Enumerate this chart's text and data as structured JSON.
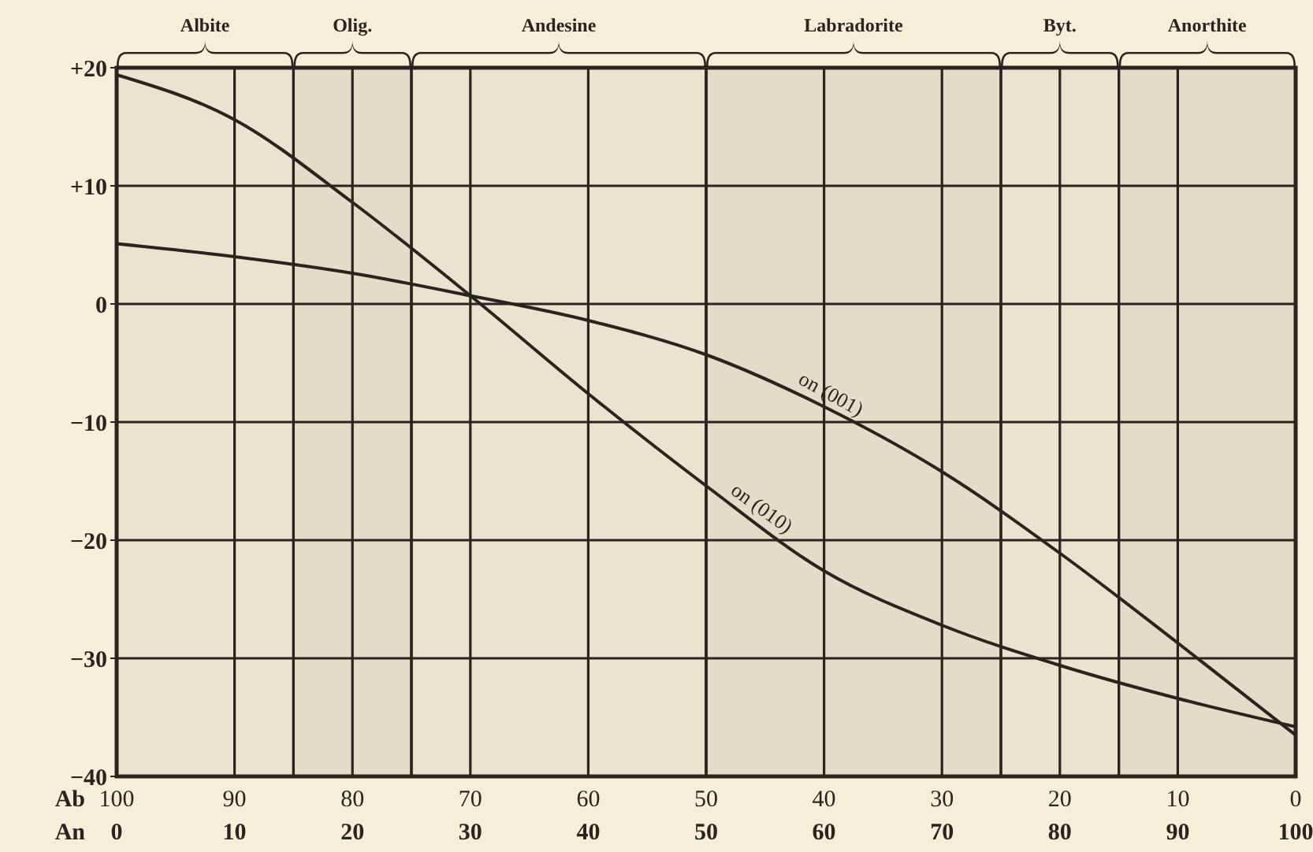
{
  "chart_data": {
    "type": "line",
    "xlabel": "An",
    "x2label": "Ab",
    "xlim": [
      0,
      100
    ],
    "xticks": [
      0,
      10,
      20,
      30,
      40,
      50,
      60,
      70,
      80,
      90,
      100
    ],
    "x2lim": [
      100,
      0
    ],
    "x2ticks": [
      100,
      90,
      80,
      70,
      60,
      50,
      40,
      30,
      20,
      10,
      0
    ],
    "ylim": [
      -40,
      20
    ],
    "yticks": [
      {
        "value": 20,
        "label": "+20"
      },
      {
        "value": 10,
        "label": "+10"
      },
      0,
      -10,
      -20,
      -30,
      -40
    ],
    "grid": true,
    "bands": [
      {
        "axis": "x",
        "from": 0,
        "to": 15,
        "label": "Albite"
      },
      {
        "axis": "x",
        "from": 15,
        "to": 25,
        "label": "Olig."
      },
      {
        "axis": "x",
        "from": 25,
        "to": 50,
        "label": "Andesine"
      },
      {
        "axis": "x",
        "from": 50,
        "to": 75,
        "label": "Labradorite"
      },
      {
        "axis": "x",
        "from": 75,
        "to": 85,
        "label": "Byt."
      },
      {
        "axis": "x",
        "from": 85,
        "to": 100,
        "label": "Anorthite"
      }
    ],
    "series": [
      {
        "name": "on (001)",
        "color": "#2a2420",
        "x": [
          0,
          10,
          20,
          30,
          40,
          50,
          60,
          70,
          80,
          90,
          100
        ],
        "values": [
          5.1,
          4.0,
          2.6,
          0.7,
          -1.4,
          -4.3,
          -8.7,
          -14.2,
          -21.1,
          -28.7,
          -36.5
        ]
      },
      {
        "name": "on (010)",
        "color": "#2a2420",
        "x": [
          0,
          10,
          20,
          30,
          40,
          50,
          60,
          70,
          80,
          90,
          100
        ],
        "values": [
          19.4,
          15.6,
          8.6,
          0.7,
          -7.6,
          -15.4,
          -22.6,
          -27.2,
          -30.6,
          -33.4,
          -35.8
        ]
      }
    ],
    "marker": "none",
    "line_style": "solid"
  }
}
